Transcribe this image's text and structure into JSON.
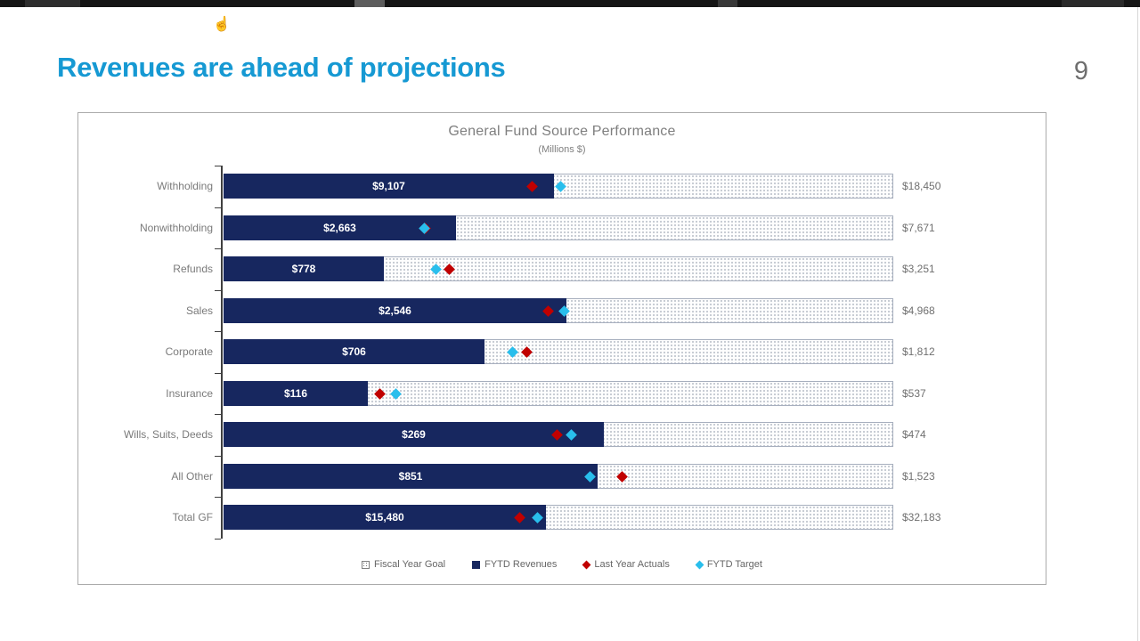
{
  "top_bar": {
    "color": "#151515"
  },
  "slide": {
    "title": "Revenues are ahead of projections",
    "title_color": "#1699d3",
    "page_number": "9"
  },
  "icons": {
    "hand_cursor": "hand-cursor-icon"
  },
  "chart_data": {
    "type": "bar",
    "orientation": "horizontal",
    "title": "General Fund Source Performance",
    "subtitle": "(Millions $)",
    "legend_position": "bottom",
    "axis_note": "each row normalized to its Fiscal Year Goal (goal bar = 100%)",
    "categories": [
      "Withholding",
      "Nonwithholding",
      "Refunds",
      "Sales",
      "Corporate",
      "Insurance",
      "Wills, Suits, Deeds",
      "All Other",
      "Total GF"
    ],
    "series": [
      {
        "name": "Fiscal Year Goal",
        "style": "dotted-bar",
        "color": "#ffffff",
        "values": [
          18450,
          7671,
          3251,
          4968,
          1812,
          537,
          474,
          1523,
          32183
        ],
        "labels": [
          "$18,450",
          "$7,671",
          "$3,251",
          "$4,968",
          "$1,812",
          "$537",
          "$474",
          "$1,523",
          "$32,183"
        ]
      },
      {
        "name": "FYTD Revenues",
        "style": "solid-bar",
        "color": "#17275f",
        "values": [
          9107,
          2663,
          778,
          2546,
          706,
          116,
          269,
          851,
          15480
        ],
        "labels": [
          "$9,107",
          "$2,663",
          "$778",
          "$2,546",
          "$706",
          "$116",
          "$269",
          "$851",
          "$15,480"
        ]
      },
      {
        "name": "Last Year Actuals",
        "style": "diamond-marker",
        "color": "#c00000",
        "estimated": true,
        "values": [
          8510,
          2315,
          1095,
          2410,
          820,
          125,
          236,
          907,
          14250
        ]
      },
      {
        "name": "FYTD Target",
        "style": "diamond-marker",
        "color": "#29beec",
        "estimated": true,
        "values": [
          9275,
          2300,
          1030,
          2530,
          783,
          138,
          246,
          834,
          15100
        ]
      }
    ],
    "legend": [
      {
        "label": "Fiscal Year Goal",
        "swatch": "dotted-square"
      },
      {
        "label": "FYTD Revenues",
        "swatch": "navy-square"
      },
      {
        "label": "Last Year Actuals",
        "swatch": "red-diamond"
      },
      {
        "label": "FYTD Target",
        "swatch": "cyan-diamond"
      }
    ]
  }
}
